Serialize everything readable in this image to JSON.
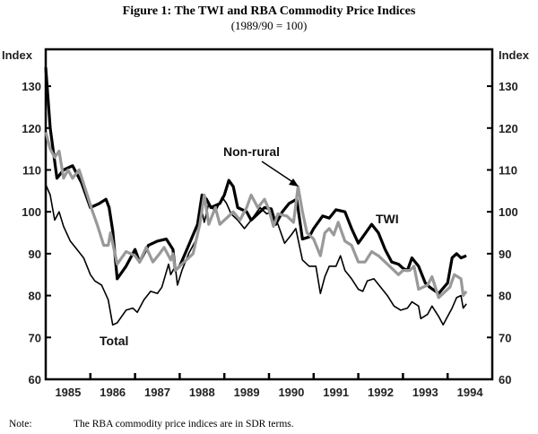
{
  "chart_data": {
    "type": "line",
    "title": "Figure 1: The TWI and RBA Commodity Price Indices",
    "subtitle": "(1989/90 = 100)",
    "ylabel_left": "Index",
    "ylabel_right": "Index",
    "ylim": [
      60,
      135
    ],
    "yticks": [
      60,
      70,
      80,
      90,
      100,
      110,
      120,
      130
    ],
    "xlim": [
      1985,
      1995
    ],
    "xtick_labels": [
      "1985",
      "1986",
      "1987",
      "1988",
      "1989",
      "1990",
      "1991",
      "1992",
      "1993",
      "1994"
    ],
    "grid": false,
    "annotations": {
      "non_rural": "Non-rural",
      "twi": "TWI",
      "total": "Total"
    },
    "series": [
      {
        "name": "TWI",
        "color": "#000000",
        "x": [
          1985.0,
          1985.1,
          1985.25,
          1985.4,
          1985.6,
          1985.8,
          1986.0,
          1986.2,
          1986.35,
          1986.42,
          1986.5,
          1986.6,
          1986.8,
          1987.0,
          1987.1,
          1987.3,
          1987.5,
          1987.7,
          1987.85,
          1987.9,
          1988.0,
          1988.2,
          1988.4,
          1988.5,
          1988.6,
          1988.7,
          1988.9,
          1989.0,
          1989.1,
          1989.2,
          1989.3,
          1989.5,
          1989.6,
          1989.8,
          1989.9,
          1990.05,
          1990.15,
          1990.3,
          1990.45,
          1990.62,
          1990.75,
          1990.9,
          1991.0,
          1991.2,
          1991.35,
          1991.5,
          1991.7,
          1991.85,
          1992.0,
          1992.1,
          1992.3,
          1992.45,
          1992.6,
          1992.75,
          1992.9,
          1993.0,
          1993.1,
          1993.2,
          1993.35,
          1993.5,
          1993.6,
          1993.8,
          1994.0,
          1994.1,
          1994.2,
          1994.3,
          1994.42
        ],
        "y": [
          134.5,
          120,
          108,
          110,
          111,
          107,
          101,
          102,
          103,
          101,
          95.5,
          84,
          87,
          91,
          88,
          92,
          93,
          93.5,
          91,
          86,
          87,
          92,
          97,
          104,
          103,
          101,
          102,
          104,
          107.5,
          106,
          101,
          100,
          98,
          100,
          101,
          100.7,
          97,
          100,
          102,
          103,
          93.5,
          94,
          96,
          99,
          98.5,
          100.5,
          100,
          96,
          92.5,
          94,
          97,
          95,
          91,
          88,
          87.5,
          86.5,
          86,
          89,
          87,
          83,
          82,
          80.5,
          83,
          89,
          90,
          89,
          89.5
        ]
      },
      {
        "name": "Non-rural",
        "color": "#999999",
        "x": [
          1985.0,
          1985.1,
          1985.2,
          1985.3,
          1985.4,
          1985.5,
          1985.6,
          1985.75,
          1985.9,
          1986.05,
          1986.15,
          1986.3,
          1986.4,
          1986.45,
          1986.6,
          1986.8,
          1987.0,
          1987.1,
          1987.25,
          1987.4,
          1987.55,
          1987.65,
          1987.8,
          1987.85,
          1987.9,
          1988.1,
          1988.3,
          1988.45,
          1988.55,
          1988.65,
          1988.8,
          1988.9,
          1989.1,
          1989.2,
          1989.35,
          1989.5,
          1989.6,
          1989.75,
          1989.9,
          1990.0,
          1990.1,
          1990.2,
          1990.4,
          1990.55,
          1990.65,
          1990.75,
          1990.85,
          1991.0,
          1991.15,
          1991.25,
          1991.35,
          1991.45,
          1991.55,
          1991.7,
          1991.85,
          1992.0,
          1992.15,
          1992.3,
          1992.45,
          1992.6,
          1992.75,
          1992.9,
          1993.0,
          1993.15,
          1993.25,
          1993.35,
          1993.55,
          1993.65,
          1993.8,
          1993.95,
          1994.05,
          1994.15,
          1994.3,
          1994.35,
          1994.42
        ],
        "y": [
          119,
          115,
          113,
          114.5,
          108,
          110,
          108,
          110,
          105,
          100,
          97,
          92,
          92,
          95,
          87.5,
          90.5,
          89.5,
          88,
          91.5,
          88,
          90,
          91.5,
          88.5,
          90,
          86,
          88,
          90,
          97,
          104,
          97,
          101,
          97,
          99,
          100,
          98,
          101,
          104,
          101,
          103,
          100.5,
          96.5,
          99.5,
          99,
          97.5,
          106,
          100,
          95,
          93.5,
          89.5,
          95,
          96,
          94.5,
          97.5,
          93,
          92,
          88,
          88,
          90.5,
          89.5,
          88,
          86.5,
          85,
          86,
          86,
          87,
          81.5,
          82.5,
          84.5,
          79.5,
          81,
          82,
          85,
          84,
          80,
          81
        ]
      },
      {
        "name": "Total",
        "color": "#000000",
        "x": [
          1985.0,
          1985.1,
          1985.2,
          1985.3,
          1985.4,
          1985.55,
          1985.7,
          1985.85,
          1986.0,
          1986.1,
          1986.25,
          1986.4,
          1986.5,
          1986.6,
          1986.8,
          1986.95,
          1987.05,
          1987.2,
          1987.35,
          1987.5,
          1987.6,
          1987.75,
          1987.8,
          1987.9,
          1987.95,
          1988.05,
          1988.2,
          1988.4,
          1988.5,
          1988.55,
          1988.65,
          1988.8,
          1988.95,
          1989.05,
          1989.15,
          1989.3,
          1989.45,
          1989.6,
          1989.8,
          1989.95,
          1990.05,
          1990.2,
          1990.35,
          1990.5,
          1990.6,
          1990.75,
          1990.9,
          1991.05,
          1991.15,
          1991.25,
          1991.35,
          1991.5,
          1991.6,
          1991.7,
          1991.85,
          1992.0,
          1992.1,
          1992.2,
          1992.35,
          1992.5,
          1992.65,
          1992.8,
          1992.95,
          1993.1,
          1993.2,
          1993.35,
          1993.4,
          1993.55,
          1993.65,
          1993.8,
          1993.9,
          1994.0,
          1994.1,
          1994.2,
          1994.3,
          1994.35,
          1994.42
        ],
        "y": [
          106.5,
          104,
          98,
          100,
          96.5,
          93,
          91,
          89,
          85,
          83.5,
          82.5,
          79,
          73,
          73.5,
          76.5,
          77,
          76,
          79,
          81,
          80.5,
          82,
          87.5,
          85,
          87,
          82.5,
          86,
          90,
          94,
          100,
          97.5,
          102,
          100,
          103.5,
          102,
          99.5,
          98,
          96,
          98,
          101,
          99.5,
          100,
          97,
          92.5,
          94.5,
          96,
          88.5,
          87,
          87,
          80.5,
          84.5,
          87,
          87,
          89.5,
          86,
          84,
          81.5,
          81,
          83.5,
          84,
          82,
          80,
          77.5,
          76.5,
          77,
          78.5,
          77.5,
          74.5,
          75.5,
          77.5,
          75,
          73,
          75,
          77,
          79.5,
          80,
          77,
          78
        ]
      }
    ]
  },
  "note": {
    "label": "Note:",
    "text": "The RBA commodity price indices are in SDR terms."
  }
}
